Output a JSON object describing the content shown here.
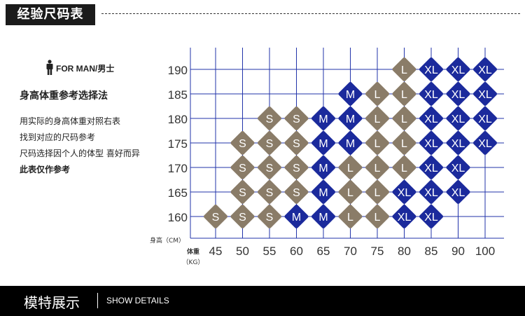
{
  "header": {
    "title": "经验尺码表"
  },
  "gender": {
    "label": "FOR MAN/男士"
  },
  "method": {
    "title": "身高体重参考选择法",
    "lines": [
      "用实际的身高体重对照右表",
      "找到对应的尺码参考",
      "尺码选择因个人的体型 喜好而异",
      "此表仅作参考"
    ]
  },
  "footer": {
    "cn": "模特展示",
    "en": "SHOW DETAILS"
  },
  "colors": {
    "S": "#8a7c68",
    "M": "#1b2a9c",
    "L": "#8a7c68",
    "XL": "#1b2a9c",
    "accent": "#1b2a9c"
  },
  "chart_data": {
    "type": "table",
    "ylabel": "身高（CM）",
    "xlabel": "体重（KG）",
    "xlabel_top": "体重",
    "xlabel_bottom": "（KG）",
    "x": [
      45,
      50,
      55,
      60,
      65,
      70,
      75,
      80,
      85,
      90,
      100
    ],
    "y": [
      190,
      185,
      180,
      175,
      170,
      165,
      160
    ],
    "cells": [
      [
        null,
        null,
        null,
        null,
        null,
        null,
        null,
        "L",
        "XL",
        "XL",
        "XL"
      ],
      [
        null,
        null,
        null,
        null,
        null,
        "M",
        "L",
        "L",
        "XL",
        "XL",
        "XL"
      ],
      [
        null,
        null,
        "S",
        "S",
        "M",
        "M",
        "L",
        "L",
        "XL",
        "XL",
        "XL"
      ],
      [
        null,
        "S",
        "S",
        "S",
        "M",
        "M",
        "L",
        "L",
        "XL",
        "XL",
        "XL"
      ],
      [
        null,
        "S",
        "S",
        "S",
        "M",
        "L",
        "L",
        "L",
        "XL",
        "XL",
        null
      ],
      [
        null,
        "S",
        "S",
        "S",
        "M",
        "L",
        "L",
        "XL",
        "XL",
        "XL",
        null
      ],
      [
        "S",
        "S",
        "S",
        "M",
        "M",
        "L",
        "L",
        "XL",
        "XL",
        null,
        null
      ]
    ]
  }
}
